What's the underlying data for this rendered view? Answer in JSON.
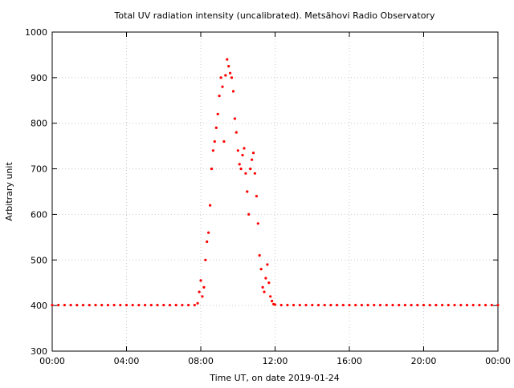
{
  "chart_data": {
    "type": "scatter",
    "title": "Total UV radiation intensity (uncalibrated). Metsähovi Radio Observatory",
    "xlabel": "Time UT, on date 2019-01-24",
    "ylabel": "Arbitrary unit",
    "xlim": [
      "00:00",
      "24:00"
    ],
    "ylim": [
      300,
      1000
    ],
    "x_ticks": [
      "00:00",
      "04:00",
      "08:00",
      "12:00",
      "16:00",
      "20:00",
      "00:00"
    ],
    "y_ticks": [
      "300",
      "400",
      "500",
      "600",
      "700",
      "800",
      "900",
      "1000"
    ],
    "grid": true,
    "marker_color": "#ff0000",
    "series": [
      {
        "points": [
          {
            "x": "00:00",
            "y": 401
          },
          {
            "x": "00:20",
            "y": 401
          },
          {
            "x": "00:40",
            "y": 401
          },
          {
            "x": "01:00",
            "y": 401
          },
          {
            "x": "01:20",
            "y": 401
          },
          {
            "x": "01:40",
            "y": 401
          },
          {
            "x": "02:00",
            "y": 401
          },
          {
            "x": "02:20",
            "y": 401
          },
          {
            "x": "02:40",
            "y": 401
          },
          {
            "x": "03:00",
            "y": 401
          },
          {
            "x": "03:20",
            "y": 401
          },
          {
            "x": "03:40",
            "y": 401
          },
          {
            "x": "04:00",
            "y": 401
          },
          {
            "x": "04:20",
            "y": 401
          },
          {
            "x": "04:40",
            "y": 401
          },
          {
            "x": "05:00",
            "y": 401
          },
          {
            "x": "05:20",
            "y": 401
          },
          {
            "x": "05:40",
            "y": 401
          },
          {
            "x": "06:00",
            "y": 401
          },
          {
            "x": "06:20",
            "y": 401
          },
          {
            "x": "06:40",
            "y": 401
          },
          {
            "x": "07:00",
            "y": 401
          },
          {
            "x": "07:20",
            "y": 401
          },
          {
            "x": "07:40",
            "y": 401
          },
          {
            "x": "07:50",
            "y": 405
          },
          {
            "x": "07:55",
            "y": 430
          },
          {
            "x": "08:00",
            "y": 455
          },
          {
            "x": "08:05",
            "y": 420
          },
          {
            "x": "08:10",
            "y": 440
          },
          {
            "x": "08:15",
            "y": 500
          },
          {
            "x": "08:20",
            "y": 540
          },
          {
            "x": "08:25",
            "y": 560
          },
          {
            "x": "08:30",
            "y": 620
          },
          {
            "x": "08:35",
            "y": 700
          },
          {
            "x": "08:40",
            "y": 740
          },
          {
            "x": "08:45",
            "y": 760
          },
          {
            "x": "08:50",
            "y": 790
          },
          {
            "x": "08:55",
            "y": 820
          },
          {
            "x": "09:00",
            "y": 860
          },
          {
            "x": "09:05",
            "y": 900
          },
          {
            "x": "09:10",
            "y": 880
          },
          {
            "x": "09:15",
            "y": 760
          },
          {
            "x": "09:20",
            "y": 905
          },
          {
            "x": "09:25",
            "y": 940
          },
          {
            "x": "09:30",
            "y": 925
          },
          {
            "x": "09:35",
            "y": 910
          },
          {
            "x": "09:40",
            "y": 900
          },
          {
            "x": "09:45",
            "y": 870
          },
          {
            "x": "09:50",
            "y": 810
          },
          {
            "x": "09:55",
            "y": 780
          },
          {
            "x": "10:00",
            "y": 740
          },
          {
            "x": "10:05",
            "y": 710
          },
          {
            "x": "10:10",
            "y": 700
          },
          {
            "x": "10:15",
            "y": 730
          },
          {
            "x": "10:20",
            "y": 745
          },
          {
            "x": "10:25",
            "y": 690
          },
          {
            "x": "10:30",
            "y": 650
          },
          {
            "x": "10:35",
            "y": 600
          },
          {
            "x": "10:40",
            "y": 700
          },
          {
            "x": "10:45",
            "y": 720
          },
          {
            "x": "10:50",
            "y": 735
          },
          {
            "x": "10:55",
            "y": 690
          },
          {
            "x": "11:00",
            "y": 640
          },
          {
            "x": "11:05",
            "y": 580
          },
          {
            "x": "11:10",
            "y": 510
          },
          {
            "x": "11:15",
            "y": 480
          },
          {
            "x": "11:20",
            "y": 440
          },
          {
            "x": "11:25",
            "y": 430
          },
          {
            "x": "11:30",
            "y": 460
          },
          {
            "x": "11:35",
            "y": 490
          },
          {
            "x": "11:40",
            "y": 450
          },
          {
            "x": "11:45",
            "y": 420
          },
          {
            "x": "11:50",
            "y": 410
          },
          {
            "x": "11:55",
            "y": 403
          },
          {
            "x": "12:00",
            "y": 402
          },
          {
            "x": "12:20",
            "y": 401
          },
          {
            "x": "12:40",
            "y": 401
          },
          {
            "x": "13:00",
            "y": 401
          },
          {
            "x": "13:20",
            "y": 401
          },
          {
            "x": "13:40",
            "y": 401
          },
          {
            "x": "14:00",
            "y": 401
          },
          {
            "x": "14:20",
            "y": 401
          },
          {
            "x": "14:40",
            "y": 401
          },
          {
            "x": "15:00",
            "y": 401
          },
          {
            "x": "15:20",
            "y": 401
          },
          {
            "x": "15:40",
            "y": 401
          },
          {
            "x": "16:00",
            "y": 401
          },
          {
            "x": "16:20",
            "y": 401
          },
          {
            "x": "16:40",
            "y": 401
          },
          {
            "x": "17:00",
            "y": 401
          },
          {
            "x": "17:20",
            "y": 401
          },
          {
            "x": "17:40",
            "y": 401
          },
          {
            "x": "18:00",
            "y": 401
          },
          {
            "x": "18:20",
            "y": 401
          },
          {
            "x": "18:40",
            "y": 401
          },
          {
            "x": "19:00",
            "y": 401
          },
          {
            "x": "19:20",
            "y": 401
          },
          {
            "x": "19:40",
            "y": 401
          },
          {
            "x": "20:00",
            "y": 401
          },
          {
            "x": "20:20",
            "y": 401
          },
          {
            "x": "20:40",
            "y": 401
          },
          {
            "x": "21:00",
            "y": 401
          },
          {
            "x": "21:20",
            "y": 401
          },
          {
            "x": "21:40",
            "y": 401
          },
          {
            "x": "22:00",
            "y": 401
          },
          {
            "x": "22:20",
            "y": 401
          },
          {
            "x": "22:40",
            "y": 401
          },
          {
            "x": "23:00",
            "y": 401
          },
          {
            "x": "23:20",
            "y": 401
          },
          {
            "x": "23:40",
            "y": 401
          },
          {
            "x": "24:00",
            "y": 401
          }
        ]
      }
    ]
  }
}
